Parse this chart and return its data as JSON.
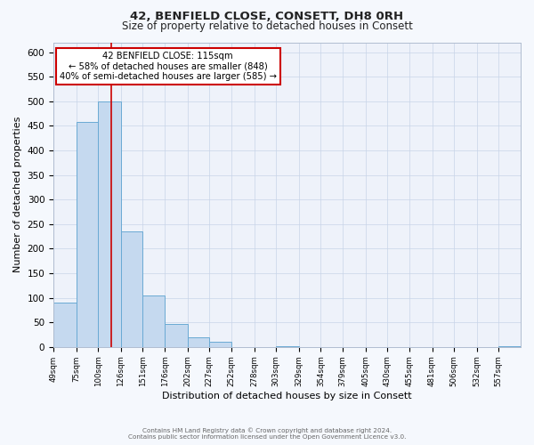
{
  "title": "42, BENFIELD CLOSE, CONSETT, DH8 0RH",
  "subtitle": "Size of property relative to detached houses in Consett",
  "xlabel": "Distribution of detached houses by size in Consett",
  "ylabel": "Number of detached properties",
  "bin_labels": [
    "49sqm",
    "75sqm",
    "100sqm",
    "126sqm",
    "151sqm",
    "176sqm",
    "202sqm",
    "227sqm",
    "252sqm",
    "278sqm",
    "303sqm",
    "329sqm",
    "354sqm",
    "379sqm",
    "405sqm",
    "430sqm",
    "455sqm",
    "481sqm",
    "506sqm",
    "532sqm",
    "557sqm"
  ],
  "bin_lefts": [
    49,
    75,
    100,
    126,
    151,
    176,
    202,
    227,
    252,
    278,
    303,
    329,
    354,
    379,
    405,
    430,
    455,
    481,
    506,
    532,
    557
  ],
  "bin_values": [
    90,
    458,
    500,
    235,
    105,
    46,
    20,
    10,
    0,
    0,
    2,
    0,
    0,
    0,
    0,
    0,
    0,
    0,
    0,
    0,
    2
  ],
  "bar_color": "#c5d9ef",
  "bar_edge_color": "#6aaad4",
  "property_line_x": 115,
  "property_line_label": "42 BENFIELD CLOSE: 115sqm",
  "annotation_line1": "← 58% of detached houses are smaller (848)",
  "annotation_line2": "40% of semi-detached houses are larger (585) →",
  "annotation_box_color": "#ffffff",
  "annotation_box_edge": "#cc0000",
  "red_line_color": "#cc0000",
  "ylim": [
    0,
    620
  ],
  "yticks": [
    0,
    50,
    100,
    150,
    200,
    250,
    300,
    350,
    400,
    450,
    500,
    550,
    600
  ],
  "bg_color": "#eef2fa",
  "fig_bg_color": "#f5f8fd",
  "footer_line1": "Contains HM Land Registry data © Crown copyright and database right 2024.",
  "footer_line2": "Contains public sector information licensed under the Open Government Licence v3.0."
}
